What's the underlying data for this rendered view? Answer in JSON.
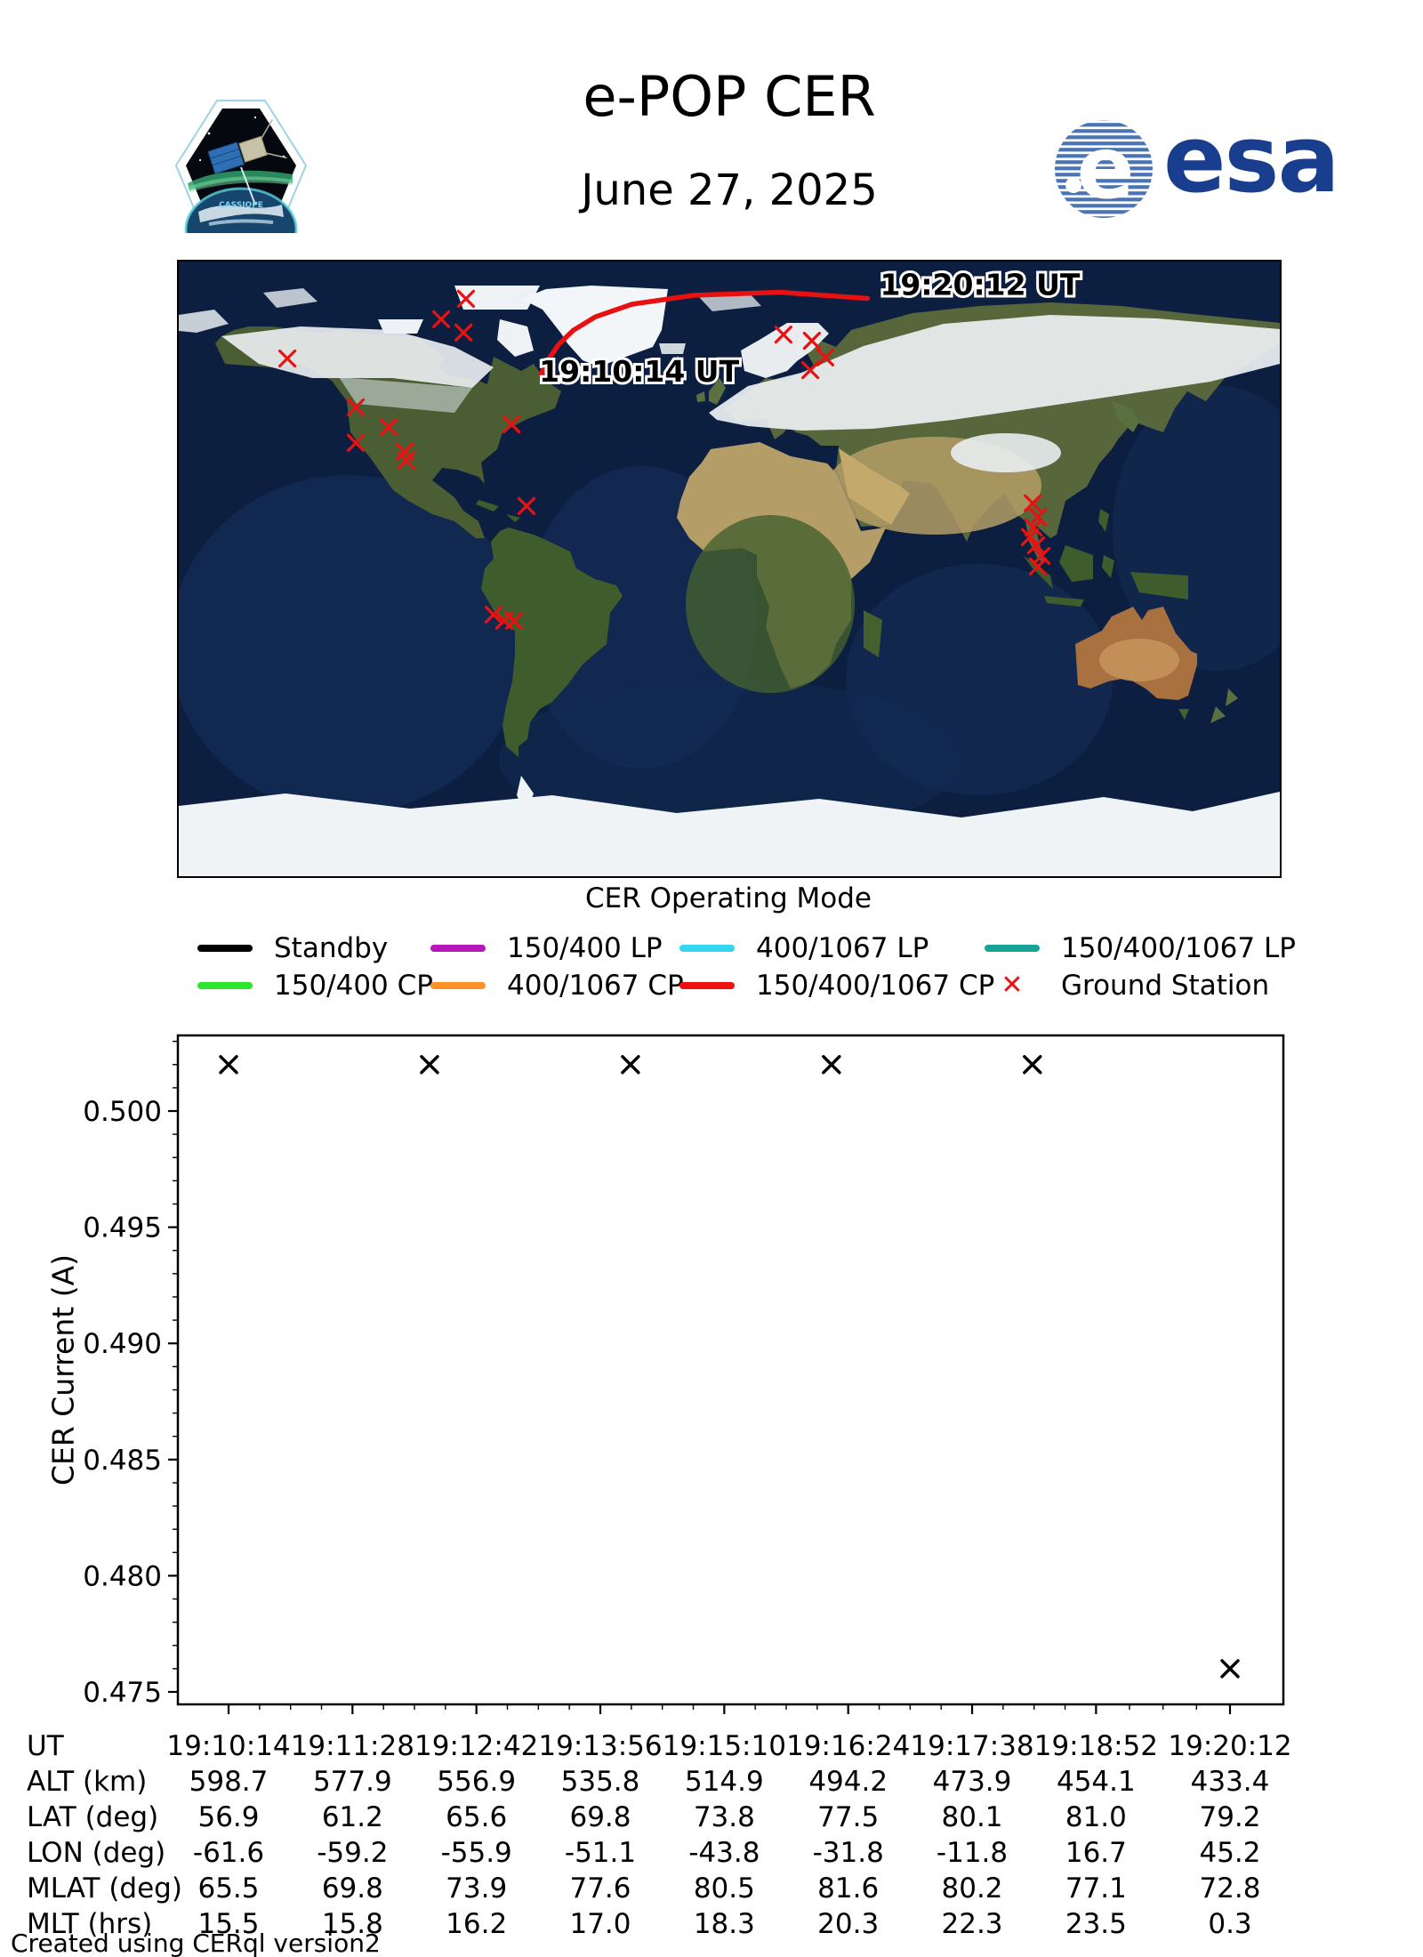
{
  "header": {
    "title": "e-POP CER",
    "date": "June 27, 2025",
    "esa_wordmark": "esa",
    "cassiope_label": "CASSIOPE"
  },
  "map": {
    "start_annotation": "19:10:14 UT",
    "end_annotation": "19:20:12 UT",
    "track_color": "#e81010",
    "station_color": "#e81212",
    "track_latlon": [
      [
        56.9,
        -61.6
      ],
      [
        61.2,
        -59.2
      ],
      [
        65.6,
        -55.9
      ],
      [
        69.8,
        -51.1
      ],
      [
        73.8,
        -43.8
      ],
      [
        77.5,
        -31.8
      ],
      [
        80.1,
        -11.8
      ],
      [
        81.0,
        16.7
      ],
      [
        79.2,
        45.2
      ]
    ],
    "ground_stations_latlon": [
      [
        79.1,
        -86.1
      ],
      [
        73.1,
        -94.2
      ],
      [
        69.2,
        -86.9
      ],
      [
        61.6,
        -144.5
      ],
      [
        47.3,
        -122.1
      ],
      [
        41.5,
        -111.4
      ],
      [
        36.9,
        -122.1
      ],
      [
        34.3,
        -106.1
      ],
      [
        31.7,
        -105.6
      ],
      [
        42.3,
        -71.2
      ],
      [
        18.4,
        -66.3
      ],
      [
        -13.4,
        -77.1
      ],
      [
        -15.2,
        -73.6
      ],
      [
        -15.2,
        -70.4
      ],
      [
        68.6,
        17.7
      ],
      [
        66.8,
        27.0
      ],
      [
        61.9,
        31.4
      ],
      [
        58.2,
        26.5
      ],
      [
        19.2,
        99.2
      ],
      [
        15.2,
        100.9
      ],
      [
        12.1,
        99.5
      ],
      [
        9.3,
        98.3
      ],
      [
        6.9,
        100.3
      ],
      [
        3.8,
        102.1
      ],
      [
        0.7,
        100.9
      ]
    ]
  },
  "legend": {
    "title": "CER Operating Mode",
    "items": [
      {
        "label": "Standby",
        "color": "#000000",
        "type": "line"
      },
      {
        "label": "150/400 LP",
        "color": "#b517b8",
        "type": "line"
      },
      {
        "label": "400/1067 LP",
        "color": "#36d3f2",
        "type": "line"
      },
      {
        "label": "150/400/1067 LP",
        "color": "#17a398",
        "type": "line"
      },
      {
        "label": "150/400 CP",
        "color": "#2ee52e",
        "type": "line"
      },
      {
        "label": "400/1067 CP",
        "color": "#ff9226",
        "type": "line"
      },
      {
        "label": "150/400/1067 CP",
        "color": "#ee1111",
        "type": "line"
      },
      {
        "label": "Ground Station",
        "color": "#ee1111",
        "type": "x"
      }
    ]
  },
  "chart_data": {
    "type": "scatter",
    "marker": "x",
    "marker_color": "#000000",
    "ylabel": "CER Current (A)",
    "ylim": [
      0.4745,
      0.5033
    ],
    "yticks": [
      0.475,
      0.48,
      0.485,
      0.49,
      0.495,
      0.5
    ],
    "ytick_labels": [
      "0.475",
      "0.480",
      "0.485",
      "0.490",
      "0.495",
      "0.500"
    ],
    "x_ticks": [
      "19:10:14",
      "19:11:28",
      "19:12:42",
      "19:13:56",
      "19:15:10",
      "19:16:24",
      "19:17:38",
      "19:18:52",
      "19:20:12"
    ],
    "points": [
      {
        "ut": "19:10:14",
        "value": 0.502
      },
      {
        "ut": "19:12:14",
        "value": 0.502
      },
      {
        "ut": "19:14:14",
        "value": 0.502
      },
      {
        "ut": "19:16:14",
        "value": 0.502
      },
      {
        "ut": "19:18:14",
        "value": 0.502
      },
      {
        "ut": "19:20:12",
        "value": 0.476
      }
    ]
  },
  "table": {
    "rows": [
      {
        "label": "UT",
        "values": [
          "19:10:14",
          "19:11:28",
          "19:12:42",
          "19:13:56",
          "19:15:10",
          "19:16:24",
          "19:17:38",
          "19:18:52",
          "19:20:12"
        ]
      },
      {
        "label": "ALT (km)",
        "values": [
          "598.7",
          "577.9",
          "556.9",
          "535.8",
          "514.9",
          "494.2",
          "473.9",
          "454.1",
          "433.4"
        ]
      },
      {
        "label": "LAT (deg)",
        "values": [
          "56.9",
          "61.2",
          "65.6",
          "69.8",
          "73.8",
          "77.5",
          "80.1",
          "81.0",
          "79.2"
        ]
      },
      {
        "label": "LON (deg)",
        "values": [
          "-61.6",
          "-59.2",
          "-55.9",
          "-51.1",
          "-43.8",
          "-31.8",
          "-11.8",
          "16.7",
          "45.2"
        ]
      },
      {
        "label": "MLAT (deg)",
        "values": [
          "65.5",
          "69.8",
          "73.9",
          "77.6",
          "80.5",
          "81.6",
          "80.2",
          "77.1",
          "72.8"
        ]
      },
      {
        "label": "MLT (hrs)",
        "values": [
          "15.5",
          "15.8",
          "16.2",
          "17.0",
          "18.3",
          "20.3",
          "22.3",
          "23.5",
          "0.3"
        ]
      }
    ]
  },
  "footer": {
    "credit": "Created using CERql version2"
  }
}
